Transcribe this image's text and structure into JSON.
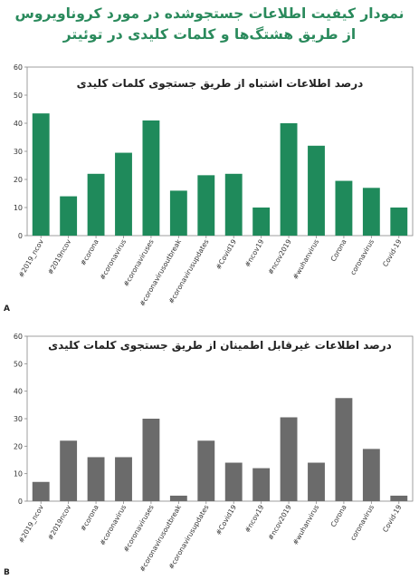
{
  "header": {
    "title_line1": "نمودار کیفیت اطلاعات جستجوشده در مورد کروناویروس",
    "title_line2": "از طریق هشتگ‌ها و کلمات کلیدی در توئیتر"
  },
  "colors": {
    "title": "#2a8a5c",
    "chart_a_bar": "#1f8a5b",
    "chart_b_bar": "#6b6b6b"
  },
  "chart_data": [
    {
      "type": "bar",
      "panel_label": "A",
      "title": "درصد اطلاعات اشتباه از طریق جستجوی کلمات کلیدی",
      "xlabel": "",
      "ylabel": "",
      "ylim": [
        0,
        60
      ],
      "yticks": [
        0,
        10,
        20,
        30,
        40,
        50,
        60
      ],
      "grid": false,
      "categories": [
        "#2019_ncov",
        "#2019ncov",
        "#corona",
        "#coronavirus",
        "#coronaviruses",
        "#coronavirusoutbreak",
        "#coronavirusupdates",
        "#Covid19",
        "#ncov19",
        "#ncov2019",
        "#wuhanvirus",
        "Corona",
        "coronavirus",
        "Covid-19"
      ],
      "values": [
        43.5,
        14,
        22,
        29.5,
        41,
        16,
        21.5,
        22,
        10,
        40,
        32,
        19.5,
        17,
        10
      ]
    },
    {
      "type": "bar",
      "panel_label": "B",
      "title": "درصد اطلاعات غیرقابل اطمینان از طریق جستجوی کلمات کلیدی",
      "xlabel": "",
      "ylabel": "",
      "ylim": [
        0,
        60
      ],
      "yticks": [
        0,
        10,
        20,
        30,
        40,
        50,
        60
      ],
      "grid": false,
      "categories": [
        "#2019_ncov",
        "#2019ncov",
        "#corona",
        "#coronavirus",
        "#coronaviruses",
        "#coronavirusoutbreak",
        "#coronavirusupdates",
        "#Covid19",
        "#ncov19",
        "#ncov2019",
        "#wuhanvirus",
        "Corona",
        "coronavirus",
        "Covid-19"
      ],
      "values": [
        7,
        22,
        16,
        16,
        30,
        2,
        22,
        14,
        12,
        30.5,
        14,
        37.5,
        19,
        2
      ]
    }
  ]
}
